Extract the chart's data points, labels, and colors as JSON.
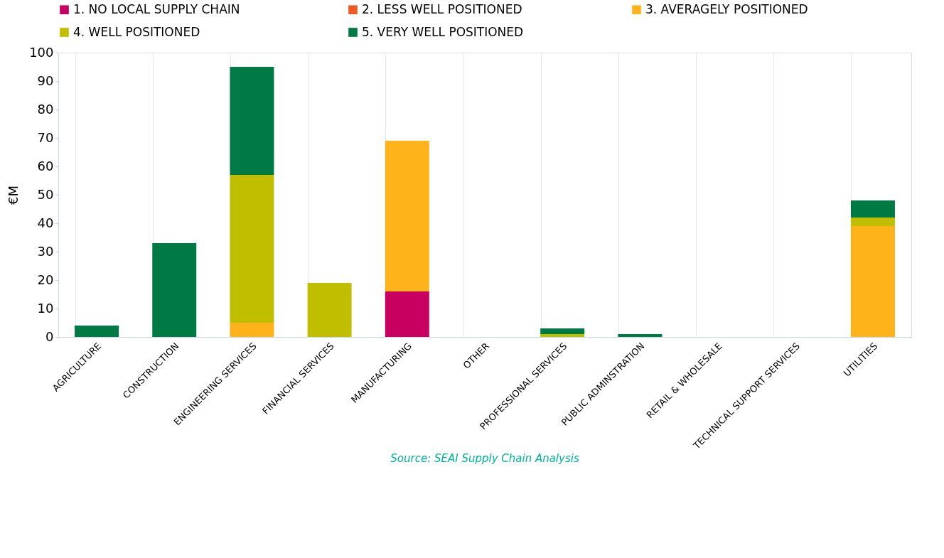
{
  "chart_data": {
    "type": "bar",
    "stacked": true,
    "ylabel": "€M",
    "categories": [
      "AGRICULTURE",
      "CONSTRUCTION",
      "ENGINEERING SERVICES",
      "FINANCIAL SERVICES",
      "MANUFACTURING",
      "OTHER",
      "PROFESSIONAL SERVICES",
      "PUBLIC ADMINSTRATION",
      "RETAIL & WHOLESALE",
      "TECHNICAL SUPPORT SERVICES",
      "UTILITIES"
    ],
    "series": [
      {
        "name": "1. NO LOCAL SUPPLY CHAIN",
        "color": "#c8005f",
        "values": [
          0,
          0,
          0,
          0,
          16,
          0,
          0,
          0,
          0,
          0,
          0
        ]
      },
      {
        "name": "2. LESS WELL POSITIONED",
        "color": "#ee5a24",
        "values": [
          0,
          0,
          0,
          0,
          0,
          0,
          0,
          0,
          0,
          0,
          0
        ]
      },
      {
        "name": "3. AVERAGELY POSITIONED",
        "color": "#ffb31a",
        "values": [
          0,
          0,
          5,
          0,
          53,
          0,
          0,
          0,
          0,
          0,
          39
        ]
      },
      {
        "name": "4. WELL POSITIONED",
        "color": "#bfbf00",
        "values": [
          0,
          0,
          52,
          19,
          0,
          0,
          1,
          0,
          0,
          0,
          3
        ]
      },
      {
        "name": "5. VERY WELL POSITIONED",
        "color": "#007a45",
        "values": [
          4,
          33,
          38,
          0,
          0,
          0,
          2,
          1,
          0,
          0,
          6
        ]
      }
    ],
    "ylim": [
      0,
      100
    ],
    "yticks": [
      0,
      10,
      20,
      30,
      40,
      50,
      60,
      70,
      80,
      90,
      100
    ],
    "grid": "x",
    "legend": "top",
    "annotations": [
      "Source: SEAI Supply Chain Analysis"
    ]
  }
}
